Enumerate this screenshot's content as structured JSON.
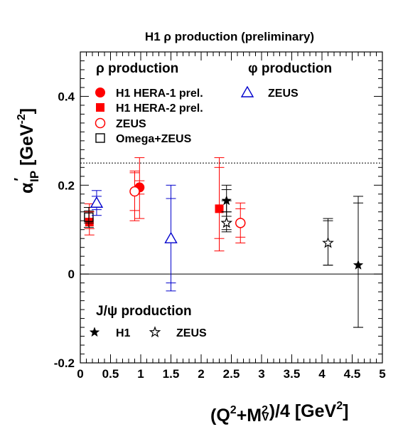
{
  "chart_data": {
    "type": "scatter",
    "title": "H1 ρ production (preliminary)",
    "xlabel_parts": [
      "(Q",
      "2",
      "+M",
      "2",
      "V",
      ")/4 [GeV",
      "2",
      "]"
    ],
    "ylabel_parts": [
      "α",
      "′",
      "IP",
      " [GeV",
      "-2",
      "]"
    ],
    "xlim": [
      0,
      5
    ],
    "ylim": [
      -0.2,
      0.5
    ],
    "x_ticks": [
      0,
      0.5,
      1,
      1.5,
      2,
      2.5,
      3,
      3.5,
      4,
      4.5,
      5
    ],
    "x_tick_labels": [
      "0",
      "0.5",
      "1",
      "1.5",
      "2",
      "2.5",
      "3",
      "3.5",
      "4",
      "4.5",
      "5"
    ],
    "y_ticks": [
      -0.2,
      0,
      0.2,
      0.4
    ],
    "y_tick_labels": [
      "-0.2",
      "0",
      "0.2",
      "0.4"
    ],
    "reference_lines": [
      {
        "y": 0.25,
        "style": "dotted"
      },
      {
        "y": 0,
        "style": "solid"
      }
    ],
    "legend_headers": {
      "rho": "ρ production",
      "phi": "φ production",
      "jpsi": "J/ψ production"
    },
    "series": [
      {
        "name": "H1 HERA-1 prel.",
        "group": "rho",
        "marker": "circle-filled",
        "color": "#ff0000",
        "points": [
          {
            "x": 0.98,
            "y": 0.195,
            "stat": [
              0.18,
              0.21
            ],
            "tot": [
              0.125,
              0.262
            ]
          }
        ]
      },
      {
        "name": "H1 HERA-2 prel.",
        "group": "rho",
        "marker": "square-filled",
        "color": "#ff0000",
        "points": [
          {
            "x": 0.15,
            "y": 0.117,
            "stat": [
              0.102,
              0.14
            ],
            "tot": [
              0.088,
              0.158
            ]
          },
          {
            "x": 2.3,
            "y": 0.147,
            "stat": [
              0.08,
              0.24
            ],
            "tot": [
              0.052,
              0.262
            ]
          }
        ]
      },
      {
        "name": "ZEUS",
        "group": "rho",
        "marker": "circle-open",
        "color": "#ff0000",
        "points": [
          {
            "x": 0.9,
            "y": 0.186,
            "stat": [
              0.143,
              0.228
            ],
            "tot": [
              0.12,
              0.232
            ]
          },
          {
            "x": 2.65,
            "y": 0.115,
            "stat": [
              0.083,
              0.147
            ],
            "tot": [
              0.07,
              0.16
            ]
          }
        ]
      },
      {
        "name": "Omega+ZEUS",
        "group": "rho",
        "marker": "square-open",
        "color": "#000000",
        "points": [
          {
            "x": 0.14,
            "y": 0.128,
            "stat": [
              0.115,
              0.142
            ],
            "tot": [
              0.105,
              0.15
            ]
          }
        ]
      },
      {
        "name": "ZEUS",
        "group": "phi",
        "marker": "triangle-open",
        "color": "#0000cc",
        "points": [
          {
            "x": 0.27,
            "y": 0.16,
            "stat": [
              0.145,
              0.175
            ],
            "tot": [
              0.132,
              0.188
            ]
          },
          {
            "x": 1.5,
            "y": 0.08,
            "stat": [
              -0.02,
              0.17
            ],
            "tot": [
              -0.038,
              0.2
            ]
          }
        ]
      },
      {
        "name": "H1",
        "group": "jpsi",
        "marker": "star-filled",
        "color": "#000000",
        "points": [
          {
            "x": 2.42,
            "y": 0.165,
            "stat": [
              0.14,
              0.19
            ],
            "tot": [
              0.13,
              0.2
            ]
          },
          {
            "x": 4.6,
            "y": 0.02,
            "stat": [
              -0.12,
              0.16
            ],
            "tot": [
              -0.12,
              0.175
            ]
          }
        ]
      },
      {
        "name": "ZEUS",
        "group": "jpsi",
        "marker": "star-open",
        "color": "#000000",
        "points": [
          {
            "x": 2.42,
            "y": 0.115,
            "stat": [
              0.1,
              0.14
            ],
            "tot": [
              0.095,
              0.165
            ]
          },
          {
            "x": 4.1,
            "y": 0.07,
            "stat": [
              0.02,
              0.12
            ],
            "tot": [
              0.02,
              0.125
            ]
          }
        ]
      }
    ]
  }
}
